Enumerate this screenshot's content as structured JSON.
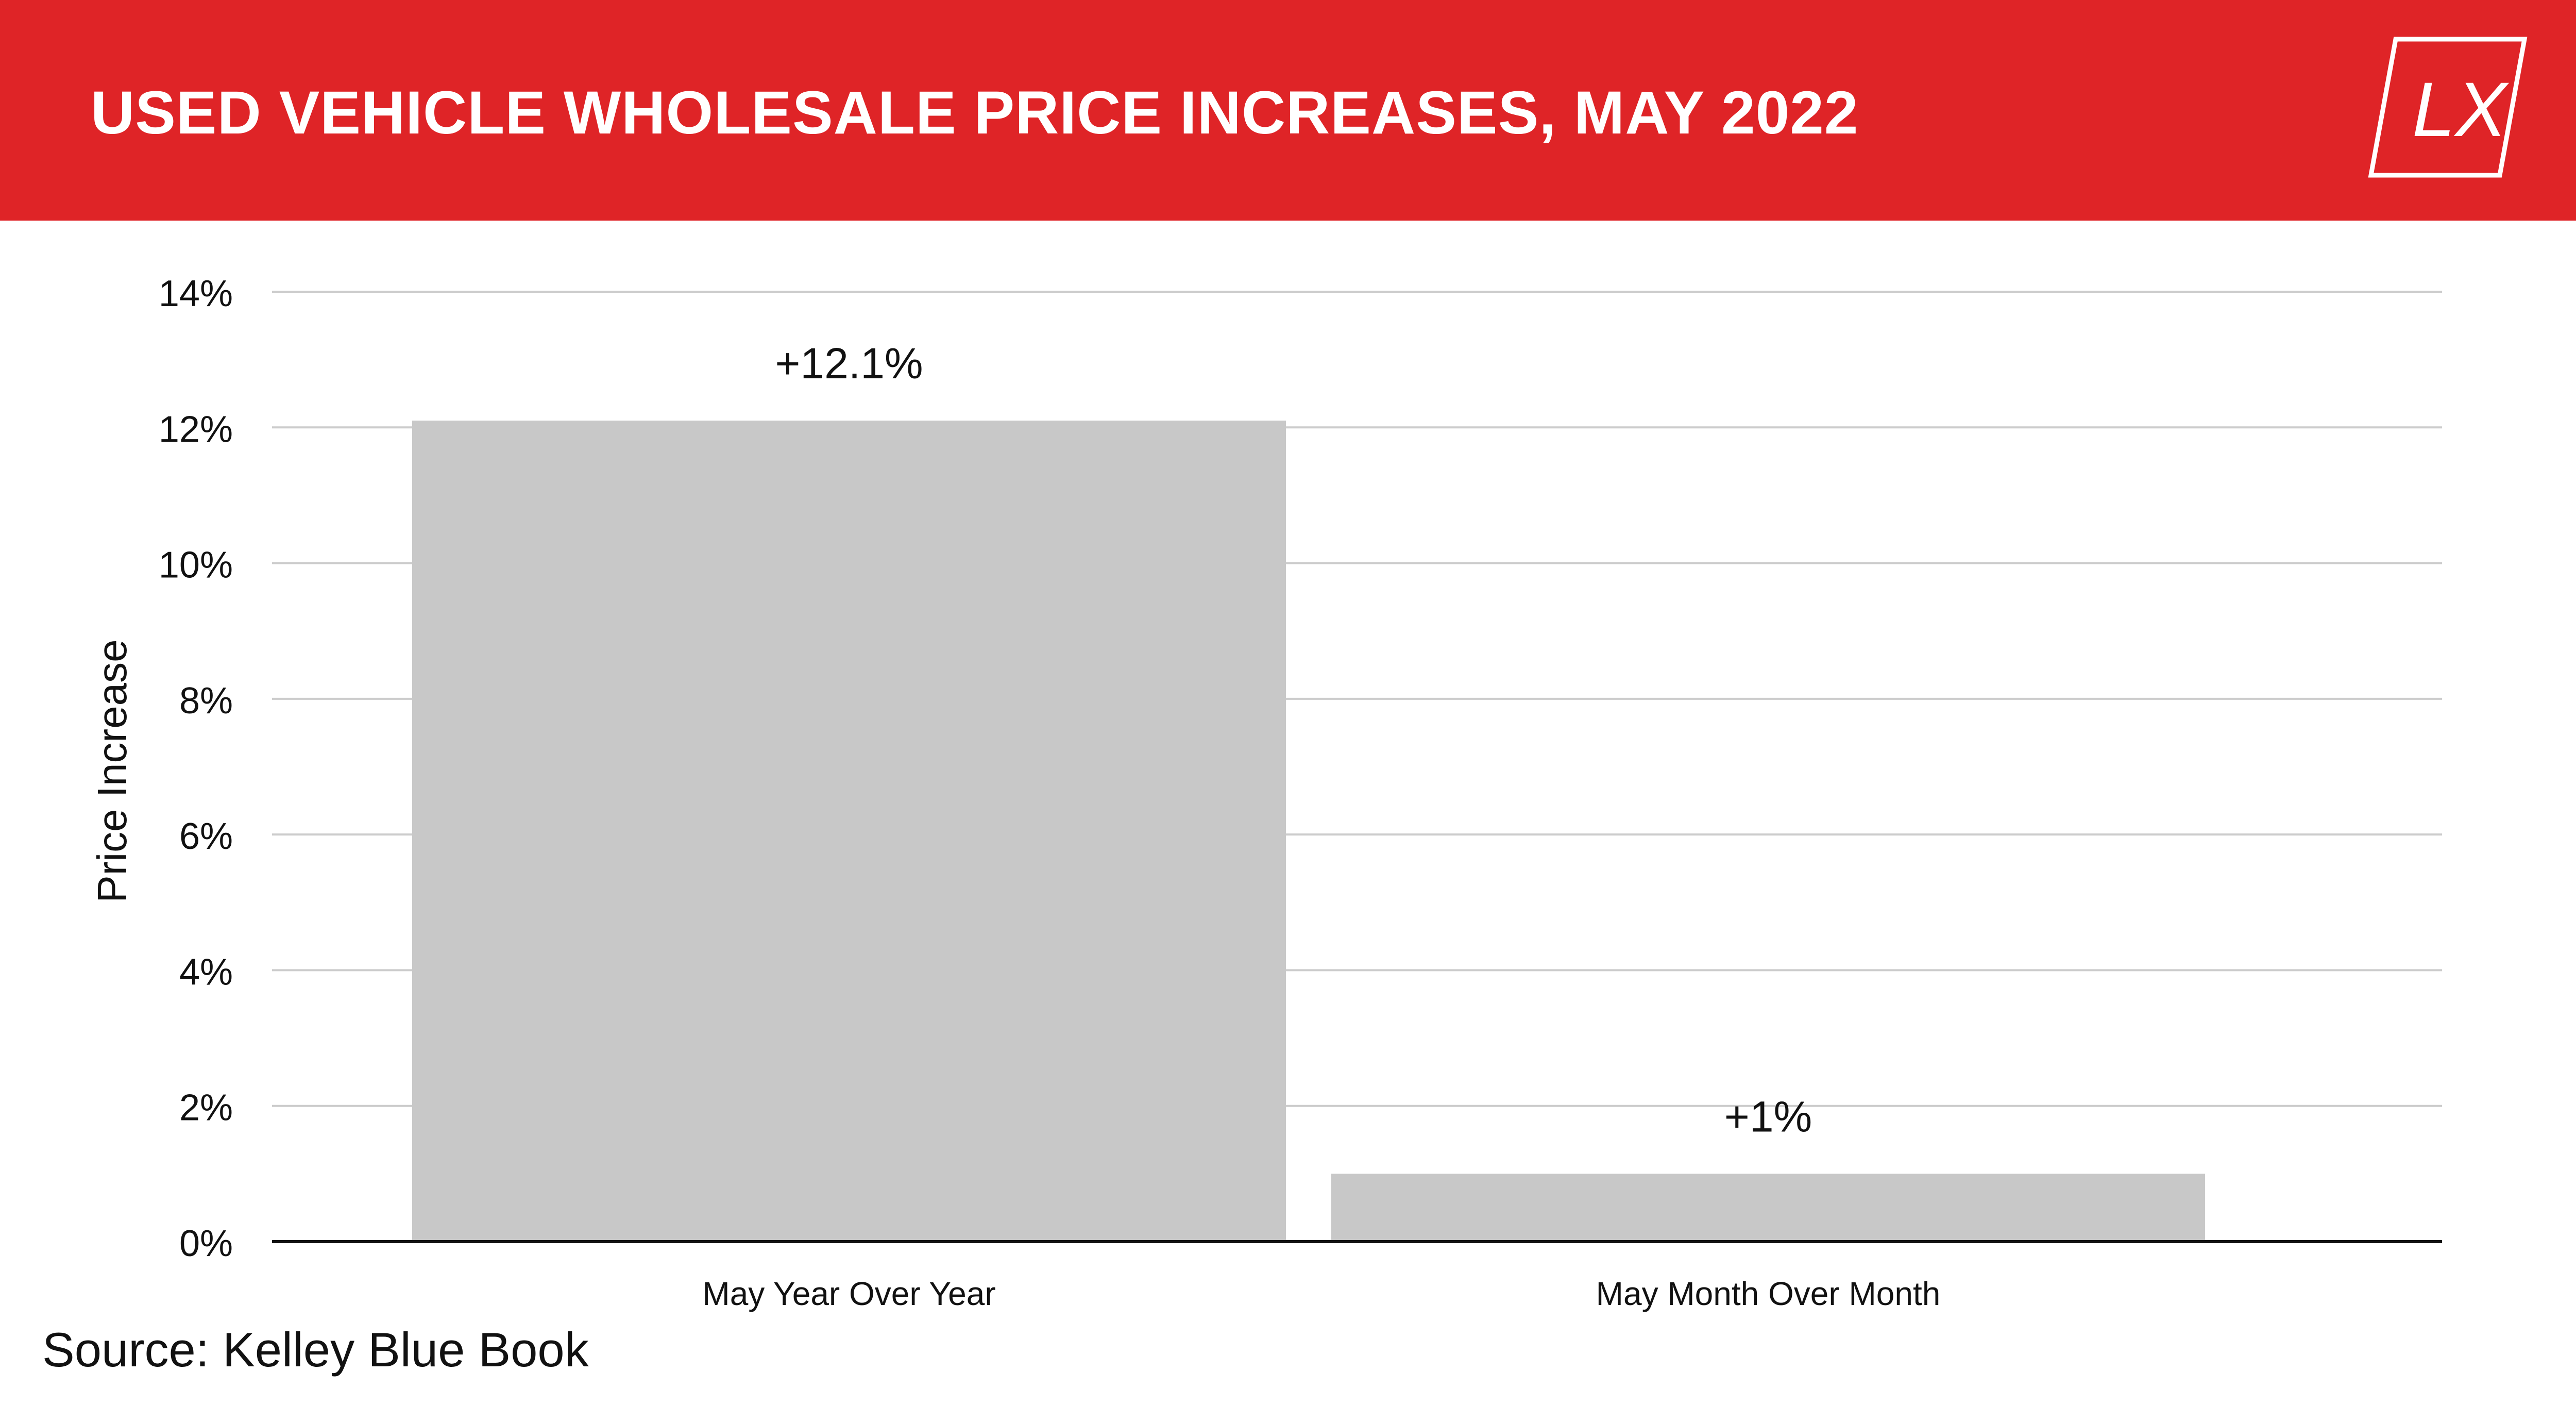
{
  "banner": {
    "title": "USED VEHICLE WHOLESALE PRICE INCREASES, MAY 2022",
    "logo_text": "LX",
    "color": "#df2427"
  },
  "source": "Source: Kelley Blue Book",
  "chart_data": {
    "type": "bar",
    "categories": [
      "May Year Over Year",
      "May Month Over Month"
    ],
    "values": [
      12.1,
      1
    ],
    "data_labels": [
      "+12.1%",
      "+1%"
    ],
    "ylabel": "Price Increase",
    "xlabel": "",
    "ylim": [
      0,
      14
    ],
    "yticks": [
      0,
      2,
      4,
      6,
      8,
      10,
      12,
      14
    ],
    "ytick_labels": [
      "0%",
      "2%",
      "4%",
      "6%",
      "8%",
      "10%",
      "12%",
      "14%"
    ],
    "grid": true,
    "bar_color": "#c8c8c8",
    "legend": "none"
  }
}
